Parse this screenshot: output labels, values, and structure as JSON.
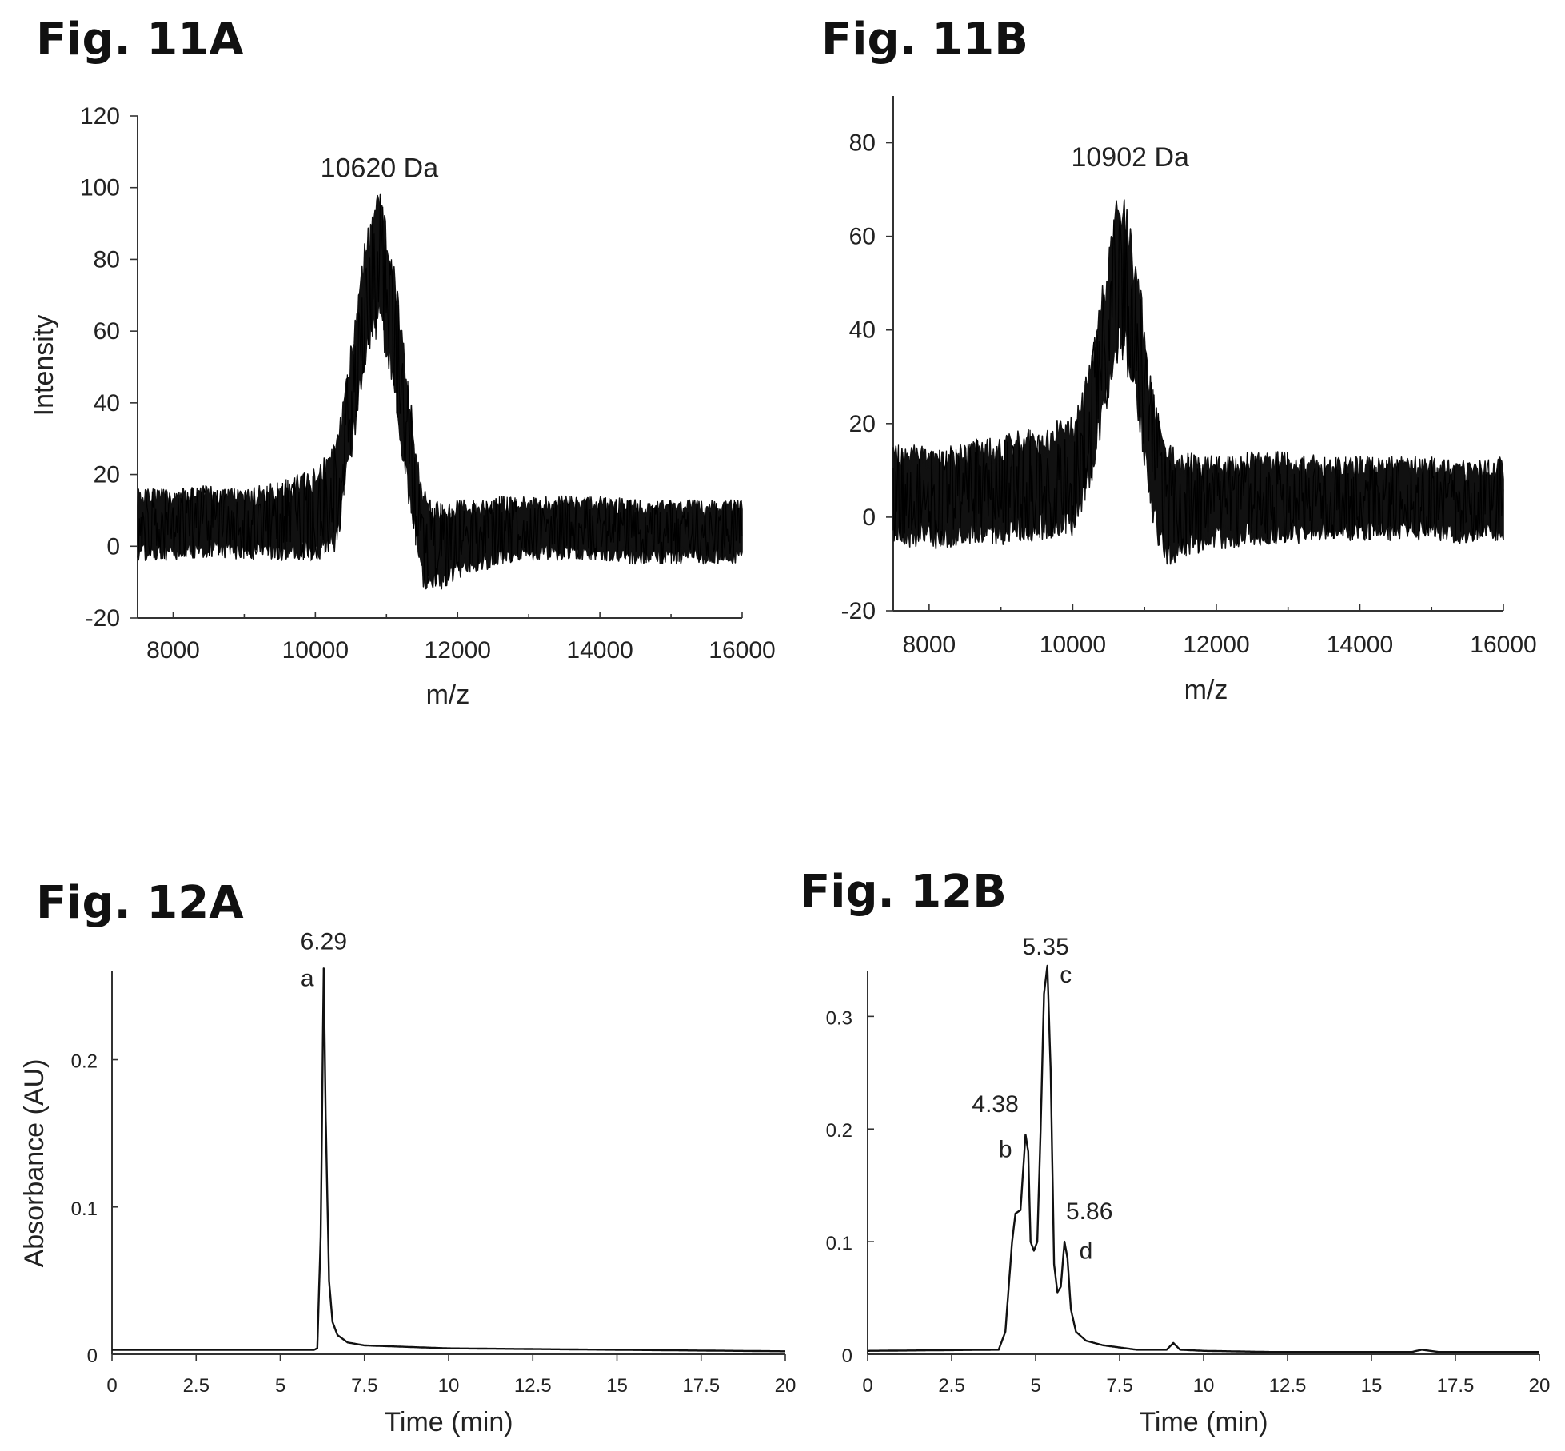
{
  "chart_data": [
    {
      "id": "fig11a",
      "panel_title": "Fig. 11A",
      "type": "line",
      "xlabel": "m/z",
      "ylabel": "Intensity",
      "xlim": [
        7500,
        16000
      ],
      "ylim": [
        -20,
        120
      ],
      "xticks": [
        8000,
        10000,
        12000,
        14000,
        16000
      ],
      "yticks": [
        -20,
        0,
        20,
        40,
        60,
        80,
        100,
        120
      ],
      "grid": false,
      "annotations": [
        {
          "text": "10620 Da",
          "x": 10900,
          "y": 103
        }
      ],
      "series": [
        {
          "x": [
            7500,
            8000,
            8500,
            9000,
            9500,
            10000,
            10300,
            10500,
            10700,
            10900,
            11100,
            11300,
            11500,
            11800,
            12000,
            12500,
            13000,
            13500,
            14000,
            14500,
            15000,
            15500,
            16000
          ],
          "y": [
            6,
            6,
            7,
            6,
            7,
            9,
            14,
            40,
            68,
            80,
            62,
            30,
            2,
            0,
            2,
            4,
            5,
            5,
            5,
            4,
            4,
            4,
            4
          ],
          "spread": [
            10,
            10,
            10,
            10,
            11,
            13,
            16,
            17,
            18,
            20,
            19,
            17,
            14,
            12,
            11,
            10,
            9,
            9,
            9,
            9,
            9,
            9,
            9
          ]
        }
      ]
    },
    {
      "id": "fig11b",
      "panel_title": "Fig. 11B",
      "type": "line",
      "xlabel": "m/z",
      "ylabel": "",
      "xlim": [
        7500,
        16000
      ],
      "ylim": [
        -20,
        90
      ],
      "xticks": [
        8000,
        10000,
        12000,
        14000,
        16000
      ],
      "yticks": [
        -20,
        0,
        20,
        40,
        60,
        80
      ],
      "grid": false,
      "annotations": [
        {
          "text": "10902 Da",
          "x": 10800,
          "y": 75
        }
      ],
      "series": [
        {
          "x": [
            7500,
            8000,
            8500,
            9000,
            9500,
            10000,
            10200,
            10400,
            10600,
            10700,
            10900,
            11100,
            11300,
            11500,
            12000,
            12500,
            13000,
            13500,
            14000,
            14500,
            15000,
            15500,
            16000
          ],
          "y": [
            5,
            4,
            5,
            6,
            7,
            9,
            17,
            32,
            50,
            52,
            38,
            14,
            2,
            2,
            3,
            4,
            4,
            4,
            4,
            4,
            4,
            3,
            4
          ],
          "spread": [
            11,
            11,
            11,
            12,
            12,
            13,
            14,
            16,
            18,
            19,
            17,
            15,
            14,
            12,
            10,
            10,
            10,
            9,
            9,
            9,
            9,
            9,
            9
          ]
        }
      ]
    },
    {
      "id": "fig12a",
      "panel_title": "Fig. 12A",
      "type": "line",
      "xlabel": "Time (min)",
      "ylabel": "Absorbance (AU)",
      "xlim": [
        0,
        20
      ],
      "ylim": [
        0,
        0.26
      ],
      "xticks": [
        0,
        2.5,
        5,
        7.5,
        10,
        12.5,
        15,
        17.5,
        20
      ],
      "xtick_labels": [
        "0",
        "2.5",
        "5",
        "7.5",
        "10",
        "12.5",
        "15",
        "17.5",
        "20"
      ],
      "yticks": [
        0,
        0.1,
        0.2
      ],
      "grid": false,
      "annotations": [
        {
          "text": "6.29",
          "x": 6.29,
          "y": 0.275
        },
        {
          "text": "a",
          "x": 5.8,
          "y": 0.25
        }
      ],
      "series": [
        {
          "x": [
            0,
            6.0,
            6.1,
            6.2,
            6.29,
            6.35,
            6.45,
            6.55,
            6.7,
            7.0,
            7.5,
            10,
            15,
            20
          ],
          "y": [
            0.003,
            0.003,
            0.004,
            0.08,
            0.262,
            0.16,
            0.05,
            0.022,
            0.013,
            0.008,
            0.006,
            0.004,
            0.003,
            0.002
          ]
        }
      ]
    },
    {
      "id": "fig12b",
      "panel_title": "Fig. 12B",
      "type": "line",
      "xlabel": "Time (min)",
      "ylabel": "",
      "xlim": [
        0,
        20
      ],
      "ylim": [
        0,
        0.34
      ],
      "xticks": [
        0,
        2.5,
        5,
        7.5,
        10,
        12.5,
        15,
        17.5,
        20
      ],
      "xtick_labels": [
        "0",
        "2.5",
        "5",
        "7.5",
        "10",
        "12.5",
        "15",
        "17.5",
        "20"
      ],
      "yticks": [
        0,
        0.1,
        0.2,
        0.3
      ],
      "grid": false,
      "annotations": [
        {
          "text": "5.35",
          "x": 5.3,
          "y": 0.355
        },
        {
          "text": "c",
          "x": 5.9,
          "y": 0.33
        },
        {
          "text": "4.38",
          "x": 3.8,
          "y": 0.215
        },
        {
          "text": "b",
          "x": 4.1,
          "y": 0.175
        },
        {
          "text": "5.86",
          "x": 6.6,
          "y": 0.12
        },
        {
          "text": "d",
          "x": 6.5,
          "y": 0.085
        }
      ],
      "series": [
        {
          "x": [
            0,
            3.9,
            4.1,
            4.3,
            4.4,
            4.55,
            4.7,
            4.78,
            4.85,
            4.95,
            5.05,
            5.15,
            5.25,
            5.35,
            5.45,
            5.55,
            5.65,
            5.75,
            5.86,
            5.95,
            6.05,
            6.2,
            6.5,
            7.0,
            8.0,
            8.9,
            9.1,
            9.3,
            10,
            12,
            15,
            16.2,
            16.5,
            17,
            20
          ],
          "y": [
            0.003,
            0.004,
            0.02,
            0.1,
            0.125,
            0.128,
            0.195,
            0.18,
            0.1,
            0.092,
            0.1,
            0.2,
            0.32,
            0.345,
            0.25,
            0.08,
            0.055,
            0.06,
            0.1,
            0.085,
            0.04,
            0.02,
            0.012,
            0.008,
            0.004,
            0.004,
            0.01,
            0.004,
            0.003,
            0.002,
            0.002,
            0.002,
            0.004,
            0.002,
            0.002
          ]
        }
      ]
    }
  ]
}
